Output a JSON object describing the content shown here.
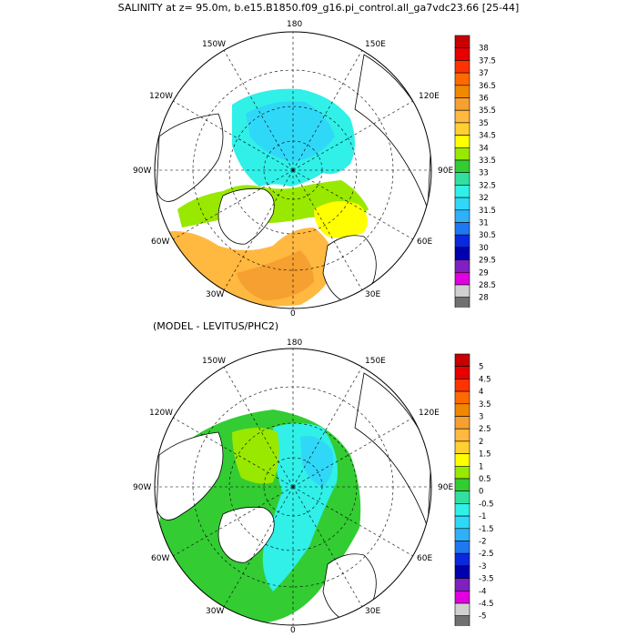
{
  "titles": {
    "top": "SALINITY at z=  95.0m, b.e15.B1850.f09_g16.pi_control.all_ga7vdc23.66 [25-44]",
    "bottom": "(MODEL - LEVITUS/PHC2)"
  },
  "lon_labels": {
    "deg180": "180",
    "w150": "150W",
    "e150": "150E",
    "w120": "120W",
    "e120": "120E",
    "w90": "90W",
    "e90": "90E",
    "w60": "60W",
    "e60": "60E",
    "w30": "30W",
    "e30": "30E",
    "deg0": "0"
  },
  "legend_top": {
    "labels": [
      "38",
      "37.5",
      "37",
      "36.5",
      "36",
      "35.5",
      "35",
      "34.5",
      "34",
      "33.5",
      "33",
      "32.5",
      "32",
      "31.5",
      "31",
      "30.5",
      "30",
      "29.5",
      "29",
      "28.5",
      "28"
    ],
    "colors": [
      "#c80000",
      "#e80000",
      "#ff3300",
      "#ff6a00",
      "#f08800",
      "#f5a030",
      "#ffb840",
      "#ffd030",
      "#ffff00",
      "#99e800",
      "#33cc33",
      "#30e0a0",
      "#30f0e8",
      "#30d8f8",
      "#30b0f8",
      "#1e78f0",
      "#0a28e0",
      "#0000b0",
      "#8020c0",
      "#e000e0",
      "#d0d0d0",
      "#707070"
    ]
  },
  "legend_bottom": {
    "labels": [
      "5",
      "4.5",
      "4",
      "3.5",
      "3",
      "2.5",
      "2",
      "1.5",
      "1",
      "0.5",
      "0",
      "-0.5",
      "-1",
      "-1.5",
      "-2",
      "-2.5",
      "-3",
      "-3.5",
      "-4",
      "-4.5",
      "-5"
    ],
    "colors": [
      "#c80000",
      "#e80000",
      "#ff3300",
      "#ff6a00",
      "#f08800",
      "#f5a030",
      "#ffb840",
      "#ffd030",
      "#ffff00",
      "#99e800",
      "#33cc33",
      "#30e0a0",
      "#30f0e8",
      "#30d8f8",
      "#30b0f8",
      "#1e78f0",
      "#0a28e0",
      "#0000b0",
      "#8020c0",
      "#e000e0",
      "#d0d0d0",
      "#707070"
    ]
  }
}
